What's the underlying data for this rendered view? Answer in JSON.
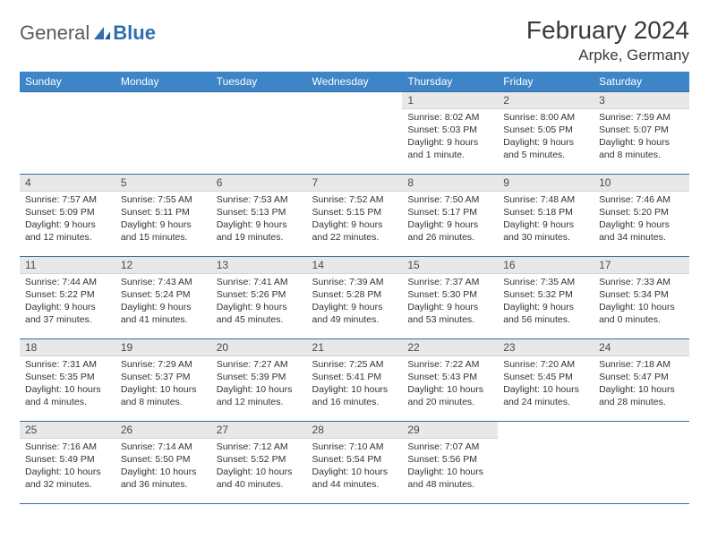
{
  "logo": {
    "text1": "General",
    "text2": "Blue"
  },
  "title": "February 2024",
  "location": "Arpke, Germany",
  "colors": {
    "header_bg": "#3d85c6",
    "header_fg": "#ffffff",
    "daynum_bg": "#e8e8e8",
    "border": "#3d6a9a",
    "logo_blue": "#2f6fb0",
    "logo_gray": "#5a5a5a"
  },
  "weekdays": [
    "Sunday",
    "Monday",
    "Tuesday",
    "Wednesday",
    "Thursday",
    "Friday",
    "Saturday"
  ],
  "first_weekday_index": 4,
  "days": [
    {
      "n": 1,
      "sr": "8:02 AM",
      "ss": "5:03 PM",
      "dl": "9 hours and 1 minute."
    },
    {
      "n": 2,
      "sr": "8:00 AM",
      "ss": "5:05 PM",
      "dl": "9 hours and 5 minutes."
    },
    {
      "n": 3,
      "sr": "7:59 AM",
      "ss": "5:07 PM",
      "dl": "9 hours and 8 minutes."
    },
    {
      "n": 4,
      "sr": "7:57 AM",
      "ss": "5:09 PM",
      "dl": "9 hours and 12 minutes."
    },
    {
      "n": 5,
      "sr": "7:55 AM",
      "ss": "5:11 PM",
      "dl": "9 hours and 15 minutes."
    },
    {
      "n": 6,
      "sr": "7:53 AM",
      "ss": "5:13 PM",
      "dl": "9 hours and 19 minutes."
    },
    {
      "n": 7,
      "sr": "7:52 AM",
      "ss": "5:15 PM",
      "dl": "9 hours and 22 minutes."
    },
    {
      "n": 8,
      "sr": "7:50 AM",
      "ss": "5:17 PM",
      "dl": "9 hours and 26 minutes."
    },
    {
      "n": 9,
      "sr": "7:48 AM",
      "ss": "5:18 PM",
      "dl": "9 hours and 30 minutes."
    },
    {
      "n": 10,
      "sr": "7:46 AM",
      "ss": "5:20 PM",
      "dl": "9 hours and 34 minutes."
    },
    {
      "n": 11,
      "sr": "7:44 AM",
      "ss": "5:22 PM",
      "dl": "9 hours and 37 minutes."
    },
    {
      "n": 12,
      "sr": "7:43 AM",
      "ss": "5:24 PM",
      "dl": "9 hours and 41 minutes."
    },
    {
      "n": 13,
      "sr": "7:41 AM",
      "ss": "5:26 PM",
      "dl": "9 hours and 45 minutes."
    },
    {
      "n": 14,
      "sr": "7:39 AM",
      "ss": "5:28 PM",
      "dl": "9 hours and 49 minutes."
    },
    {
      "n": 15,
      "sr": "7:37 AM",
      "ss": "5:30 PM",
      "dl": "9 hours and 53 minutes."
    },
    {
      "n": 16,
      "sr": "7:35 AM",
      "ss": "5:32 PM",
      "dl": "9 hours and 56 minutes."
    },
    {
      "n": 17,
      "sr": "7:33 AM",
      "ss": "5:34 PM",
      "dl": "10 hours and 0 minutes."
    },
    {
      "n": 18,
      "sr": "7:31 AM",
      "ss": "5:35 PM",
      "dl": "10 hours and 4 minutes."
    },
    {
      "n": 19,
      "sr": "7:29 AM",
      "ss": "5:37 PM",
      "dl": "10 hours and 8 minutes."
    },
    {
      "n": 20,
      "sr": "7:27 AM",
      "ss": "5:39 PM",
      "dl": "10 hours and 12 minutes."
    },
    {
      "n": 21,
      "sr": "7:25 AM",
      "ss": "5:41 PM",
      "dl": "10 hours and 16 minutes."
    },
    {
      "n": 22,
      "sr": "7:22 AM",
      "ss": "5:43 PM",
      "dl": "10 hours and 20 minutes."
    },
    {
      "n": 23,
      "sr": "7:20 AM",
      "ss": "5:45 PM",
      "dl": "10 hours and 24 minutes."
    },
    {
      "n": 24,
      "sr": "7:18 AM",
      "ss": "5:47 PM",
      "dl": "10 hours and 28 minutes."
    },
    {
      "n": 25,
      "sr": "7:16 AM",
      "ss": "5:49 PM",
      "dl": "10 hours and 32 minutes."
    },
    {
      "n": 26,
      "sr": "7:14 AM",
      "ss": "5:50 PM",
      "dl": "10 hours and 36 minutes."
    },
    {
      "n": 27,
      "sr": "7:12 AM",
      "ss": "5:52 PM",
      "dl": "10 hours and 40 minutes."
    },
    {
      "n": 28,
      "sr": "7:10 AM",
      "ss": "5:54 PM",
      "dl": "10 hours and 44 minutes."
    },
    {
      "n": 29,
      "sr": "7:07 AM",
      "ss": "5:56 PM",
      "dl": "10 hours and 48 minutes."
    }
  ],
  "labels": {
    "sunrise": "Sunrise:",
    "sunset": "Sunset:",
    "daylight": "Daylight:"
  }
}
